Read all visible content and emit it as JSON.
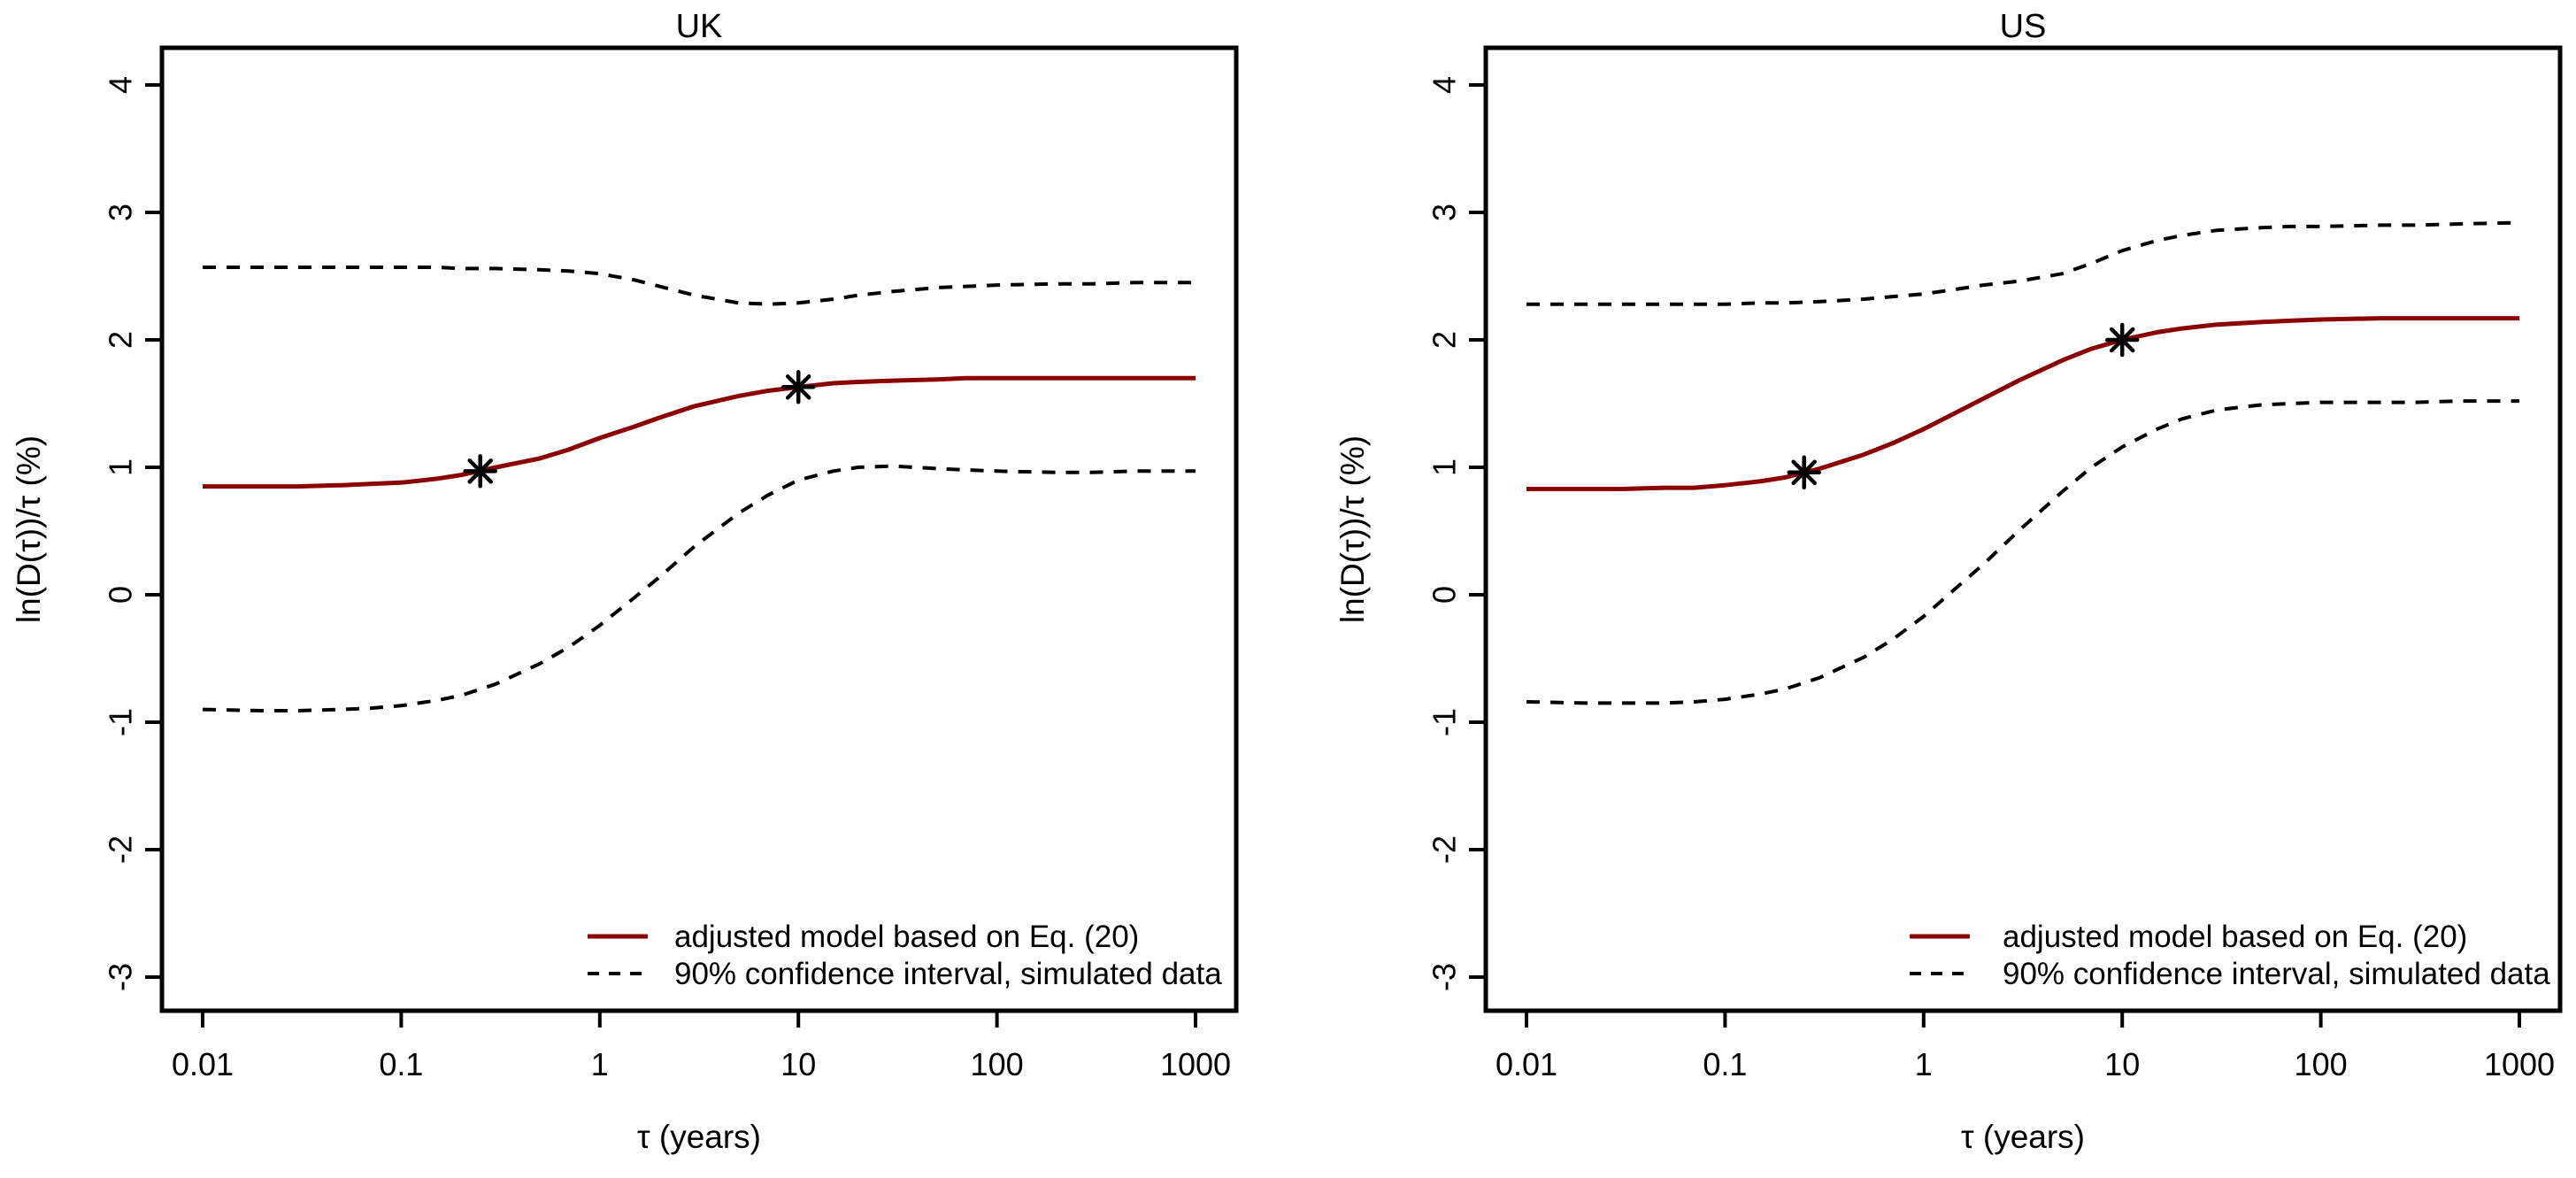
{
  "figure_title": "",
  "accent_color": "#8B0000",
  "line_color": "#000000",
  "chart_data": [
    {
      "type": "line",
      "title": "UK",
      "xlabel": "τ (years)",
      "ylabel": "ln(D(τ))/τ (%)",
      "x_scale": "log10",
      "xlim": [
        0.01,
        1000
      ],
      "ylim": [
        -3.264,
        4.292
      ],
      "x_ticks": [
        0.01,
        0.1,
        1,
        10,
        100,
        1000
      ],
      "x_tick_labels": [
        "0.01",
        "0.1",
        "1",
        "10",
        "100",
        "1000"
      ],
      "y_ticks": [
        -3,
        -2,
        -1,
        0,
        1,
        2,
        3,
        4
      ],
      "y_tick_labels": [
        "-3",
        "-2",
        "-1",
        "0",
        "1",
        "2",
        "3",
        "4"
      ],
      "grid": false,
      "x": [
        0.01,
        0.02,
        0.03,
        0.05,
        0.07,
        0.1,
        0.15,
        0.2,
        0.3,
        0.5,
        0.7,
        1,
        1.5,
        2,
        3,
        5,
        7,
        10,
        15,
        20,
        30,
        50,
        70,
        100,
        200,
        300,
        500,
        1000
      ],
      "series": [
        {
          "name": "adjusted model based on Eq. (20)",
          "style": "solid",
          "color": "#8B0000",
          "values": [
            0.85,
            0.85,
            0.85,
            0.86,
            0.87,
            0.88,
            0.91,
            0.94,
            1.0,
            1.07,
            1.14,
            1.23,
            1.32,
            1.39,
            1.48,
            1.56,
            1.6,
            1.63,
            1.66,
            1.67,
            1.68,
            1.69,
            1.7,
            1.7,
            1.7,
            1.7,
            1.7,
            1.7
          ]
        },
        {
          "name": "90% confidence interval, simulated data (upper)",
          "style": "dashed",
          "color": "#000000",
          "values": [
            2.57,
            2.57,
            2.57,
            2.57,
            2.57,
            2.57,
            2.57,
            2.56,
            2.56,
            2.55,
            2.54,
            2.52,
            2.47,
            2.42,
            2.35,
            2.29,
            2.28,
            2.29,
            2.32,
            2.35,
            2.38,
            2.41,
            2.42,
            2.43,
            2.44,
            2.44,
            2.45,
            2.45
          ]
        },
        {
          "name": "90% confidence interval, simulated data (lower)",
          "style": "dashed",
          "color": "#000000",
          "values": [
            -0.9,
            -0.91,
            -0.91,
            -0.9,
            -0.89,
            -0.87,
            -0.83,
            -0.79,
            -0.7,
            -0.54,
            -0.41,
            -0.24,
            -0.02,
            0.14,
            0.38,
            0.64,
            0.78,
            0.9,
            0.97,
            1.0,
            1.01,
            0.99,
            0.98,
            0.97,
            0.96,
            0.96,
            0.97,
            0.97
          ]
        }
      ],
      "markers": {
        "symbol": "asterisk",
        "color": "#000000",
        "points": [
          {
            "x": 0.25,
            "y": 0.97
          },
          {
            "x": 10,
            "y": 1.63
          }
        ]
      },
      "legend": {
        "position": "bottom-right",
        "entries": [
          {
            "label": "adjusted model based on Eq. (20)",
            "style": "solid",
            "color": "#8B0000"
          },
          {
            "label": "90% confidence interval, simulated data",
            "style": "dashed",
            "color": "#000000"
          }
        ]
      }
    },
    {
      "type": "line",
      "title": "US",
      "xlabel": "τ (years)",
      "ylabel": "ln(D(τ))/τ (%)",
      "x_scale": "log10",
      "xlim": [
        0.01,
        1000
      ],
      "ylim": [
        -3.264,
        4.292
      ],
      "x_ticks": [
        0.01,
        0.1,
        1,
        10,
        100,
        1000
      ],
      "x_tick_labels": [
        "0.01",
        "0.1",
        "1",
        "10",
        "100",
        "1000"
      ],
      "y_ticks": [
        -3,
        -2,
        -1,
        0,
        1,
        2,
        3,
        4
      ],
      "y_tick_labels": [
        "-3",
        "-2",
        "-1",
        "0",
        "1",
        "2",
        "3",
        "4"
      ],
      "grid": false,
      "x": [
        0.01,
        0.02,
        0.03,
        0.05,
        0.07,
        0.1,
        0.15,
        0.2,
        0.3,
        0.5,
        0.7,
        1,
        1.5,
        2,
        3,
        5,
        7,
        10,
        15,
        20,
        30,
        50,
        70,
        100,
        200,
        300,
        500,
        1000
      ],
      "series": [
        {
          "name": "adjusted model based on Eq. (20)",
          "style": "solid",
          "color": "#8B0000",
          "values": [
            0.83,
            0.83,
            0.83,
            0.84,
            0.84,
            0.86,
            0.89,
            0.92,
            0.99,
            1.1,
            1.19,
            1.3,
            1.44,
            1.54,
            1.68,
            1.84,
            1.93,
            2.0,
            2.06,
            2.09,
            2.12,
            2.14,
            2.15,
            2.16,
            2.17,
            2.17,
            2.17,
            2.17
          ]
        },
        {
          "name": "90% confidence interval, simulated data (upper)",
          "style": "dashed",
          "color": "#000000",
          "values": [
            2.28,
            2.28,
            2.28,
            2.28,
            2.28,
            2.28,
            2.29,
            2.29,
            2.3,
            2.32,
            2.34,
            2.36,
            2.4,
            2.43,
            2.46,
            2.52,
            2.6,
            2.7,
            2.78,
            2.82,
            2.86,
            2.88,
            2.89,
            2.89,
            2.9,
            2.9,
            2.91,
            2.92
          ]
        },
        {
          "name": "90% confidence interval, simulated data (lower)",
          "style": "dashed",
          "color": "#000000",
          "values": [
            -0.84,
            -0.85,
            -0.85,
            -0.85,
            -0.84,
            -0.82,
            -0.78,
            -0.74,
            -0.65,
            -0.49,
            -0.35,
            -0.17,
            0.07,
            0.24,
            0.5,
            0.81,
            1.0,
            1.16,
            1.3,
            1.38,
            1.45,
            1.49,
            1.5,
            1.51,
            1.51,
            1.51,
            1.52,
            1.52
          ]
        }
      ],
      "markers": {
        "symbol": "asterisk",
        "color": "#000000",
        "points": [
          {
            "x": 0.25,
            "y": 0.96
          },
          {
            "x": 10,
            "y": 2.0
          }
        ]
      },
      "legend": {
        "position": "bottom-right",
        "entries": [
          {
            "label": "adjusted model based on Eq. (20)",
            "style": "solid",
            "color": "#8B0000"
          },
          {
            "label": "90% confidence interval, simulated data",
            "style": "dashed",
            "color": "#000000"
          }
        ]
      }
    }
  ]
}
